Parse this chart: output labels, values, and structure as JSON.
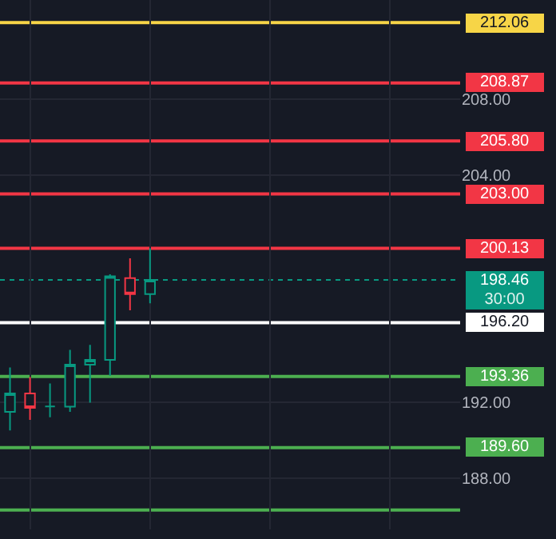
{
  "chart_data": {
    "type": "candlestick",
    "categories": [
      null,
      null,
      null,
      null,
      null,
      null,
      null,
      null,
      null,
      null,
      null,
      null,
      null,
      null,
      null,
      null,
      null,
      null,
      null,
      null,
      null,
      null,
      null
    ],
    "ohlc": [
      [
        191.49,
        193.84,
        190.51,
        192.46
      ],
      [
        192.46,
        193.33,
        191.07,
        191.7
      ],
      [
        191.78,
        192.99,
        191.21,
        191.78
      ],
      [
        191.76,
        194.77,
        191.49,
        193.98
      ],
      [
        193.98,
        195.03,
        191.98,
        194.24
      ],
      [
        194.24,
        198.76,
        193.39,
        198.65
      ],
      [
        198.56,
        199.6,
        196.86,
        197.71
      ],
      [
        197.71,
        200.13,
        197.23,
        198.46
      ],
      null,
      null,
      null,
      null,
      null,
      null,
      null,
      null,
      null,
      null,
      null,
      null,
      null,
      null,
      null
    ],
    "colors": [
      "#089981",
      "#f23645",
      "#089981",
      "#089981",
      "#089981",
      "#089981",
      "#f23645",
      "#089981",
      null,
      null,
      null,
      null,
      null,
      null,
      null,
      null,
      null,
      null,
      null,
      null,
      null,
      null,
      null
    ],
    "ylim": [
      185.28,
      213.25
    ],
    "yticks": [
      {
        "value": 188,
        "label": "188.00"
      },
      {
        "value": 192,
        "label": "192.00"
      },
      {
        "value": 204,
        "label": "204.00"
      },
      {
        "value": 208,
        "label": "208.00"
      }
    ],
    "grid": true,
    "tick_labels": "y",
    "ref_lines": [
      {
        "axis": "y",
        "value": 212.06,
        "label": "212.06",
        "color": "#f7d547"
      },
      {
        "axis": "y",
        "value": 208.87,
        "label": "208.87",
        "color": "#f23645"
      },
      {
        "axis": "y",
        "value": 205.8,
        "label": "205.80",
        "color": "#f23645"
      },
      {
        "axis": "y",
        "value": 203.0,
        "label": "203.00",
        "color": "#f23645"
      },
      {
        "axis": "y",
        "value": 200.13,
        "label": "200.13",
        "color": "#f23645"
      },
      {
        "axis": "y",
        "value": 198.46,
        "label": "198.46",
        "color": "#089981",
        "line_style": "dotted"
      },
      {
        "axis": "y",
        "value": 196.2,
        "label": "196.20",
        "color": "#ffffff"
      },
      {
        "axis": "y",
        "value": 193.36,
        "label": "193.36",
        "color": "#4caf50"
      },
      {
        "axis": "y",
        "value": 189.6,
        "label": "189.60",
        "color": "#4caf50"
      },
      {
        "axis": "y",
        "value": 186.3,
        "label": null,
        "color": "#4caf50"
      }
    ],
    "annotations": [
      "30:00"
    ]
  }
}
